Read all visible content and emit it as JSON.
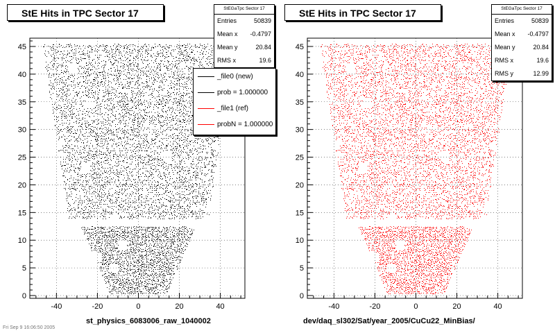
{
  "footer_note": "Fri Sep 9 16:06:50 2005",
  "chart_data": [
    {
      "type": "scatter",
      "title": "StE Hits in TPC Sector 17",
      "xlabel": "st_physics_6083006_raw_1040002",
      "ylabel": "",
      "xlim": [
        -53,
        52
      ],
      "ylim": [
        -0.5,
        46.5
      ],
      "xticks": [
        -40,
        -20,
        0,
        20,
        40
      ],
      "yticks": [
        0,
        5,
        10,
        15,
        20,
        25,
        30,
        35,
        40,
        45
      ],
      "grid": true,
      "color": "#000000",
      "stats": {
        "name": "StEGaTpc Sector 17",
        "rows": [
          {
            "label": "Entries",
            "value": "50839"
          },
          {
            "label": "Mean x",
            "value": "-0.4797"
          },
          {
            "label": "Mean y",
            "value": "20.84"
          },
          {
            "label": "RMS x",
            "value": "19.6"
          }
        ]
      },
      "legend": {
        "placement": "right, below stats box",
        "entries": [
          {
            "label": "_file0 (new)",
            "color": "#000000"
          },
          {
            "label": "prob = 1.000000",
            "color": "#000000"
          },
          {
            "label": "_file1 (ref)",
            "color": "#ff0000"
          },
          {
            "label": "probN = 1.000000",
            "color": "#ff0000"
          }
        ]
      },
      "hits_shape": {
        "band_upper": {
          "y_min": 14,
          "y_max": 45.5,
          "x_half_width_at_ymin": 34,
          "x_half_width_at_ymax": 47
        },
        "band_lower": {
          "y_min": 0.5,
          "y_max": 12.5,
          "x_half_width_at_ymin": 14,
          "x_half_width_at_ymax": 28
        },
        "gap_rows_y": [
          13,
          13.5
        ],
        "entries": 50839
      }
    },
    {
      "type": "scatter",
      "title": "StE Hits in TPC Sector 17",
      "xlabel": "dev/daq_sl302/Sat/year_2005/CuCu22_MinBias/",
      "ylabel": "",
      "xlim": [
        -53,
        52
      ],
      "ylim": [
        -0.5,
        46.5
      ],
      "xticks": [
        -40,
        -20,
        0,
        20,
        40
      ],
      "yticks": [
        0,
        5,
        10,
        15,
        20,
        25,
        30,
        35,
        40,
        45
      ],
      "grid": true,
      "color": "#ff0000",
      "stats": {
        "name": "StEGaTpc Sector 17",
        "rows": [
          {
            "label": "Entries",
            "value": "50839"
          },
          {
            "label": "Mean x",
            "value": "-0.4797"
          },
          {
            "label": "Mean y",
            "value": "20.84"
          },
          {
            "label": "RMS x",
            "value": "19.6"
          },
          {
            "label": "RMS y",
            "value": "12.99"
          }
        ]
      },
      "hits_shape": {
        "band_upper": {
          "y_min": 14,
          "y_max": 45.5,
          "x_half_width_at_ymin": 34,
          "x_half_width_at_ymax": 47
        },
        "band_lower": {
          "y_min": 0.5,
          "y_max": 12.5,
          "x_half_width_at_ymin": 14,
          "x_half_width_at_ymax": 28
        },
        "gap_rows_y": [
          13,
          13.5
        ],
        "entries": 50839
      }
    }
  ]
}
